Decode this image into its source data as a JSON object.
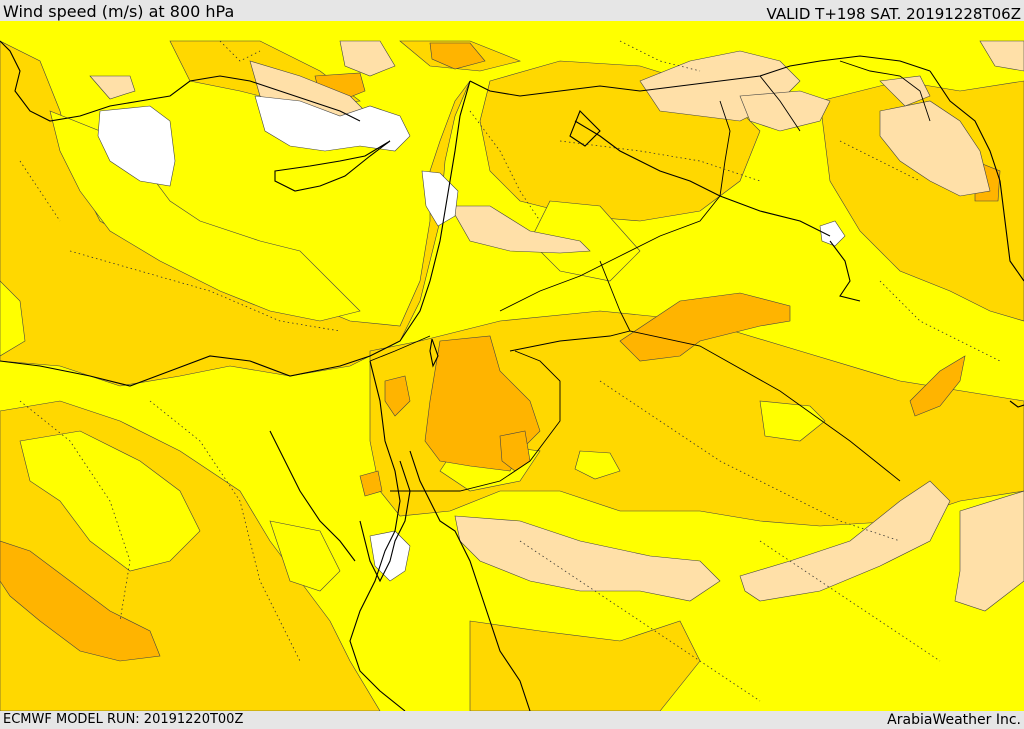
{
  "header": {
    "title": "Wind speed (m/s) at 800 hPa",
    "valid": "VALID T+198 SAT. 20191228T06Z"
  },
  "footer": {
    "model_run": "ECMWF MODEL RUN: 20191220T00Z",
    "credit": "ArabiaWeather Inc."
  },
  "colors": {
    "calm": "#ffffff",
    "band_1": "#ffff00",
    "band_2": "#ffd800",
    "band_3": "#ffb400",
    "band_4": "#ffe0a8",
    "coastline": "#000000",
    "border": "#000000"
  }
}
